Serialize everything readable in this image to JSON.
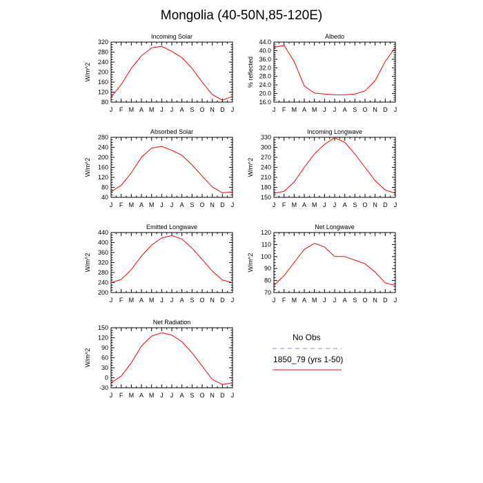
{
  "page": {
    "title": "Mongolia (40-50N,85-120E)"
  },
  "legend": {
    "obs_label": "No Obs",
    "obs_color": "#8080ff",
    "model_label": "1850_79 (yrs 1-50)",
    "model_color": "#ff0000"
  },
  "months": [
    "J",
    "F",
    "M",
    "A",
    "M",
    "J",
    "J",
    "A",
    "S",
    "O",
    "N",
    "D",
    "J"
  ],
  "chart_data": [
    {
      "type": "line",
      "title": "Incoming Solar",
      "ylabel": "W/m^2",
      "ylim": [
        80,
        320
      ],
      "yticks": [
        80,
        120,
        160,
        200,
        240,
        280,
        320
      ],
      "ytick_labels": [
        "80",
        "120",
        "160",
        "200",
        "240",
        "280",
        "320"
      ],
      "series": [
        {
          "values": [
            100,
            150,
            215,
            265,
            297,
            303,
            283,
            258,
            215,
            160,
            110,
            88,
            103
          ]
        }
      ]
    },
    {
      "type": "line",
      "title": "Albedo",
      "ylabel": "% reflected",
      "ylim": [
        16,
        44
      ],
      "yticks": [
        16,
        20,
        24,
        28,
        32,
        36,
        40,
        44
      ],
      "ytick_labels": [
        "16.0",
        "20.0",
        "24.0",
        "28.0",
        "32.0",
        "36.0",
        "40.0",
        "44.0"
      ],
      "series": [
        {
          "values": [
            41.5,
            42.5,
            35.0,
            23.5,
            20.2,
            19.8,
            19.4,
            19.4,
            19.8,
            21.2,
            26.0,
            35.0,
            41.5
          ]
        }
      ]
    },
    {
      "type": "line",
      "title": "Absorbed Solar",
      "ylabel": "W/m^2",
      "ylim": [
        40,
        280
      ],
      "yticks": [
        40,
        80,
        120,
        160,
        200,
        240,
        280
      ],
      "ytick_labels": [
        "40",
        "80",
        "120",
        "160",
        "200",
        "240",
        "280"
      ],
      "series": [
        {
          "values": [
            62,
            88,
            138,
            200,
            237,
            244,
            228,
            208,
            170,
            125,
            82,
            58,
            62
          ]
        }
      ]
    },
    {
      "type": "line",
      "title": "Incoming Longwave",
      "ylabel": "W/m^2",
      "ylim": [
        150,
        330
      ],
      "yticks": [
        150,
        180,
        210,
        240,
        270,
        300,
        330
      ],
      "ytick_labels": [
        "150",
        "180",
        "210",
        "240",
        "270",
        "300",
        "330"
      ],
      "series": [
        {
          "values": [
            162,
            168,
            196,
            240,
            280,
            309,
            329,
            315,
            280,
            240,
            200,
            172,
            162
          ]
        }
      ]
    },
    {
      "type": "line",
      "title": "Emitted Longwave",
      "ylabel": "W/m^2",
      "ylim": [
        200,
        440
      ],
      "yticks": [
        200,
        240,
        280,
        320,
        360,
        400,
        440
      ],
      "ytick_labels": [
        "200",
        "240",
        "280",
        "320",
        "360",
        "400",
        "440"
      ],
      "series": [
        {
          "values": [
            240,
            252,
            292,
            346,
            390,
            418,
            428,
            414,
            378,
            332,
            286,
            250,
            240
          ]
        }
      ]
    },
    {
      "type": "line",
      "title": "Net Longwave",
      "ylabel": "W/m^2",
      "ylim": [
        70,
        120
      ],
      "yticks": [
        70,
        80,
        90,
        100,
        110,
        120
      ],
      "ytick_labels": [
        "70",
        "80",
        "90",
        "100",
        "110",
        "120"
      ],
      "series": [
        {
          "values": [
            76,
            84,
            95,
            106,
            111,
            108,
            100,
            100,
            97,
            94,
            87,
            78,
            76
          ]
        }
      ]
    },
    {
      "type": "line",
      "title": "Net Radiation",
      "ylabel": "W/m^2",
      "ylim": [
        -30,
        150
      ],
      "yticks": [
        -30,
        0,
        30,
        60,
        90,
        120,
        150
      ],
      "ytick_labels": [
        "-30",
        "0",
        "30",
        "60",
        "90",
        "120",
        "150"
      ],
      "series": [
        {
          "values": [
            -15,
            5,
            45,
            95,
            125,
            135,
            128,
            108,
            75,
            35,
            -5,
            -20,
            -15
          ]
        }
      ]
    }
  ]
}
